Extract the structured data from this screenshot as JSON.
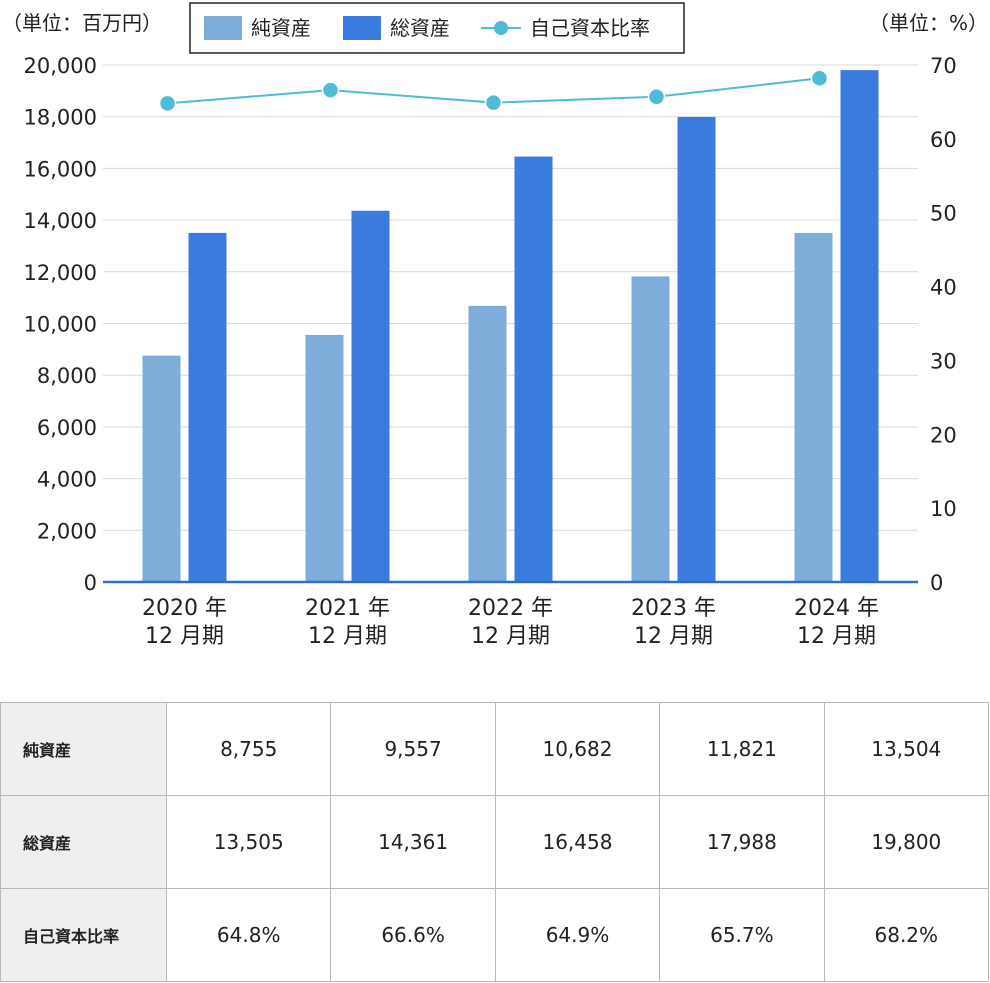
{
  "chart_data": {
    "type": "bar",
    "categories": [
      [
        "2020 年",
        "12 月期"
      ],
      [
        "2021 年",
        "12 月期"
      ],
      [
        "2022 年",
        "12 月期"
      ],
      [
        "2023 年",
        "12 月期"
      ],
      [
        "2024 年",
        "12 月期"
      ]
    ],
    "series": [
      {
        "name": "純資産",
        "type": "bar",
        "axis": "left",
        "values": [
          8755,
          9557,
          10682,
          11821,
          13504
        ]
      },
      {
        "name": "総資産",
        "type": "bar",
        "axis": "left",
        "values": [
          13505,
          14361,
          16458,
          17988,
          19800
        ]
      },
      {
        "name": "自己資本比率",
        "type": "line",
        "axis": "right",
        "values": [
          64.8,
          66.6,
          64.9,
          65.7,
          68.2
        ]
      }
    ],
    "left_axis": {
      "unit_label": "（単位：百万円）",
      "ylim": [
        0,
        20000
      ],
      "ticks": [
        "0",
        "2,000",
        "4,000",
        "6,000",
        "8,000",
        "10,000",
        "12,000",
        "14,000",
        "16,000",
        "18,000",
        "20,000"
      ]
    },
    "right_axis": {
      "unit_label": "（単位：%）",
      "ylim": [
        0,
        70
      ],
      "ticks": [
        "0",
        "10",
        "20",
        "30",
        "40",
        "50",
        "60",
        "70"
      ]
    },
    "grid": true,
    "legend_position": "top-center",
    "colors": {
      "net_assets": "#7fadd9",
      "total_assets": "#3a7bdf",
      "equity_ratio": "#4dbcd6",
      "baseline": "#2f6fc4",
      "grid": "#d9d9d9"
    }
  },
  "table": {
    "rows": [
      {
        "label": "純資産",
        "cells": [
          "8,755",
          "9,557",
          "10,682",
          "11,821",
          "13,504"
        ]
      },
      {
        "label": "総資産",
        "cells": [
          "13,505",
          "14,361",
          "16,458",
          "17,988",
          "19,800"
        ]
      },
      {
        "label": "自己資本比率",
        "cells": [
          "64.8%",
          "66.6%",
          "64.9%",
          "65.7%",
          "68.2%"
        ]
      }
    ]
  }
}
